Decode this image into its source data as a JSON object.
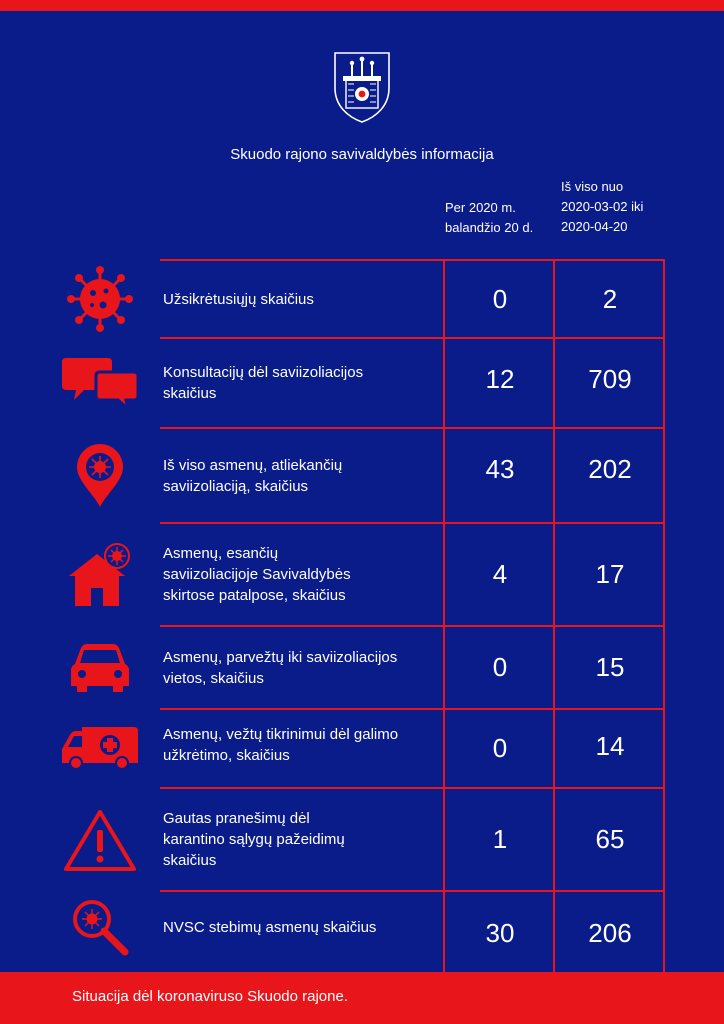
{
  "colors": {
    "background": "#0a1b8a",
    "accent": "#e8161b",
    "text": "#ffffff"
  },
  "header": {
    "crest_icon": "coat-of-arms-icon",
    "title": "Skuodo rajono savivaldybės informacija",
    "col_a": [
      "Per 2020 m.",
      "balandžio 20 d."
    ],
    "col_b": [
      "Iš viso nuo",
      "2020-03-02 iki",
      "2020-04-20"
    ]
  },
  "rows": [
    {
      "icon": "virus-icon",
      "label": [
        "Užsikrėtusiųjų skaičius"
      ],
      "today": "0",
      "total": "2"
    },
    {
      "icon": "chat-bubbles-icon",
      "label": [
        "Konsultacijų dėl saviizoliacijos",
        "skaičius"
      ],
      "today": "12",
      "total": "709"
    },
    {
      "icon": "location-virus-icon",
      "label": [
        "Iš viso asmenų, atliekančių",
        "saviizoliaciją, skaičius"
      ],
      "today": "43",
      "total": "202"
    },
    {
      "icon": "house-virus-icon",
      "label": [
        "Asmenų, esančių",
        "saviizoliacijoje Savivaldybės",
        "skirtose patalpose, skaičius"
      ],
      "today": "4",
      "total": "17"
    },
    {
      "icon": "car-icon",
      "label": [
        "Asmenų, parvežtų iki saviizoliacijos",
        "vietos, skaičius"
      ],
      "today": "0",
      "total": "15"
    },
    {
      "icon": "ambulance-icon",
      "label": [
        "Asmenų, vežtų tikrinimui dėl galimo",
        "užkrėtimo, skaičius"
      ],
      "today": "0",
      "total": "14"
    },
    {
      "icon": "warning-icon",
      "label": [
        "Gautas pranešimų dėl",
        "karantino sąlygų pažeidimų",
        "skaičius"
      ],
      "today": "1",
      "total": "65"
    },
    {
      "icon": "magnifier-virus-icon",
      "label": [
        "NVSC stebimų asmenų skaičius"
      ],
      "today": "30",
      "total": "206"
    }
  ],
  "footer": {
    "text": "Situacija dėl koronaviruso Skuodo rajone."
  }
}
